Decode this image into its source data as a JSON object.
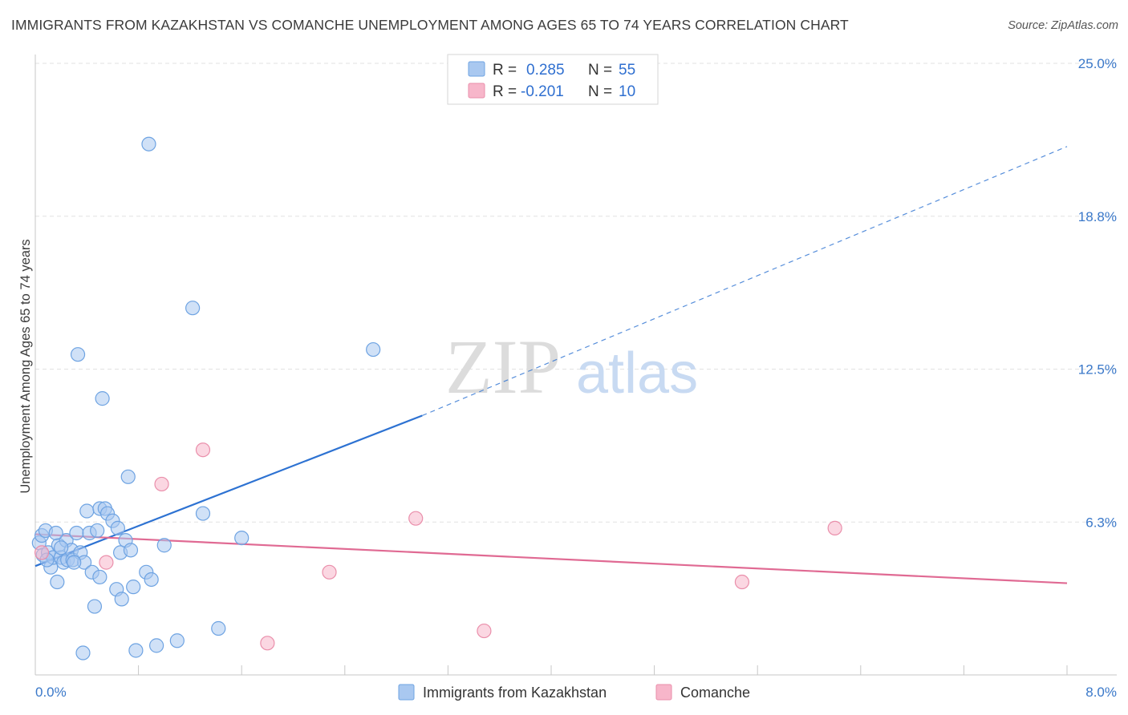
{
  "header": {
    "title": "IMMIGRANTS FROM KAZAKHSTAN VS COMANCHE UNEMPLOYMENT AMONG AGES 65 TO 74 YEARS CORRELATION CHART",
    "source": "Source: ZipAtlas.com"
  },
  "watermark": {
    "zip": "ZIP",
    "atlas": "atlas"
  },
  "legend": {
    "rows": [
      {
        "r_label": "R =",
        "r_value": "0.285",
        "n_label": "N =",
        "n_value": "55",
        "color": "#a9c8f0"
      },
      {
        "r_label": "R =",
        "r_value": "-0.201",
        "n_label": "N =",
        "n_value": "10",
        "color": "#f7b6ca"
      }
    ]
  },
  "bottom_legend": {
    "items": [
      {
        "label": "Immigrants from Kazakhstan",
        "color": "#a9c8f0"
      },
      {
        "label": "Comanche",
        "color": "#f7b6ca"
      }
    ]
  },
  "chart_data": {
    "type": "scatter",
    "title": "IMMIGRANTS FROM KAZAKHSTAN VS COMANCHE UNEMPLOYMENT AMONG AGES 65 TO 74 YEARS CORRELATION CHART",
    "xlabel": "",
    "ylabel": "Unemployment Among Ages 65 to 74 years",
    "xlim": [
      0,
      8.0
    ],
    "ylim": [
      0,
      25.0
    ],
    "x_tick_labels": [
      "0.0%",
      "8.0%"
    ],
    "y_tick_labels": [
      "6.3%",
      "12.5%",
      "18.8%",
      "25.0%"
    ],
    "y_ticks": [
      6.25,
      12.5,
      18.75,
      25.0
    ],
    "grid": true,
    "series": [
      {
        "name": "Immigrants from Kazakhstan",
        "color": "#6ea3e2",
        "fill": "#a9c8f0",
        "points": [
          [
            0.03,
            5.4
          ],
          [
            0.05,
            5.7
          ],
          [
            0.06,
            4.9
          ],
          [
            0.08,
            5.9
          ],
          [
            0.1,
            5.0
          ],
          [
            0.12,
            4.4
          ],
          [
            0.14,
            4.8
          ],
          [
            0.17,
            3.8
          ],
          [
            0.18,
            5.3
          ],
          [
            0.2,
            4.8
          ],
          [
            0.22,
            4.6
          ],
          [
            0.24,
            5.5
          ],
          [
            0.25,
            4.7
          ],
          [
            0.28,
            5.1
          ],
          [
            0.29,
            4.7
          ],
          [
            0.32,
            5.8
          ],
          [
            0.33,
            13.1
          ],
          [
            0.35,
            5.0
          ],
          [
            0.38,
            4.6
          ],
          [
            0.4,
            6.7
          ],
          [
            0.42,
            5.8
          ],
          [
            0.44,
            4.2
          ],
          [
            0.46,
            2.8
          ],
          [
            0.48,
            5.9
          ],
          [
            0.5,
            4.0
          ],
          [
            0.5,
            6.8
          ],
          [
            0.52,
            11.3
          ],
          [
            0.54,
            6.8
          ],
          [
            0.56,
            6.6
          ],
          [
            0.6,
            6.3
          ],
          [
            0.63,
            3.5
          ],
          [
            0.64,
            6.0
          ],
          [
            0.66,
            5.0
          ],
          [
            0.67,
            3.1
          ],
          [
            0.7,
            5.5
          ],
          [
            0.72,
            8.1
          ],
          [
            0.74,
            5.1
          ],
          [
            0.76,
            3.6
          ],
          [
            0.78,
            1.0
          ],
          [
            0.86,
            4.2
          ],
          [
            0.88,
            21.7
          ],
          [
            0.9,
            3.9
          ],
          [
            0.94,
            1.2
          ],
          [
            1.0,
            5.3
          ],
          [
            1.1,
            1.4
          ],
          [
            1.22,
            15.0
          ],
          [
            1.3,
            6.6
          ],
          [
            1.42,
            1.9
          ],
          [
            1.6,
            5.6
          ],
          [
            2.62,
            13.3
          ],
          [
            0.37,
            0.9
          ],
          [
            0.16,
            5.8
          ],
          [
            0.09,
            4.7
          ],
          [
            0.2,
            5.2
          ],
          [
            0.3,
            4.6
          ]
        ]
      },
      {
        "name": "Comanche",
        "color": "#ea8fab",
        "fill": "#f7b6ca",
        "points": [
          [
            0.05,
            5.0
          ],
          [
            0.55,
            4.6
          ],
          [
            0.98,
            7.8
          ],
          [
            1.3,
            9.2
          ],
          [
            1.8,
            1.3
          ],
          [
            2.28,
            4.2
          ],
          [
            2.95,
            6.4
          ],
          [
            3.48,
            1.8
          ],
          [
            5.48,
            3.8
          ],
          [
            6.2,
            6.0
          ]
        ]
      }
    ],
    "trendlines": [
      {
        "series": "Immigrants from Kazakhstan",
        "color": "#2d72d2",
        "x0": 0.0,
        "y0": 4.45,
        "x1": 3.0,
        "y1": 10.6,
        "dashed_to_x": 8.0,
        "dashed_to_y": 21.6
      },
      {
        "series": "Comanche",
        "color": "#e06a93",
        "x0": 0.0,
        "y0": 5.75,
        "x1": 8.0,
        "y1": 3.75
      }
    ]
  }
}
